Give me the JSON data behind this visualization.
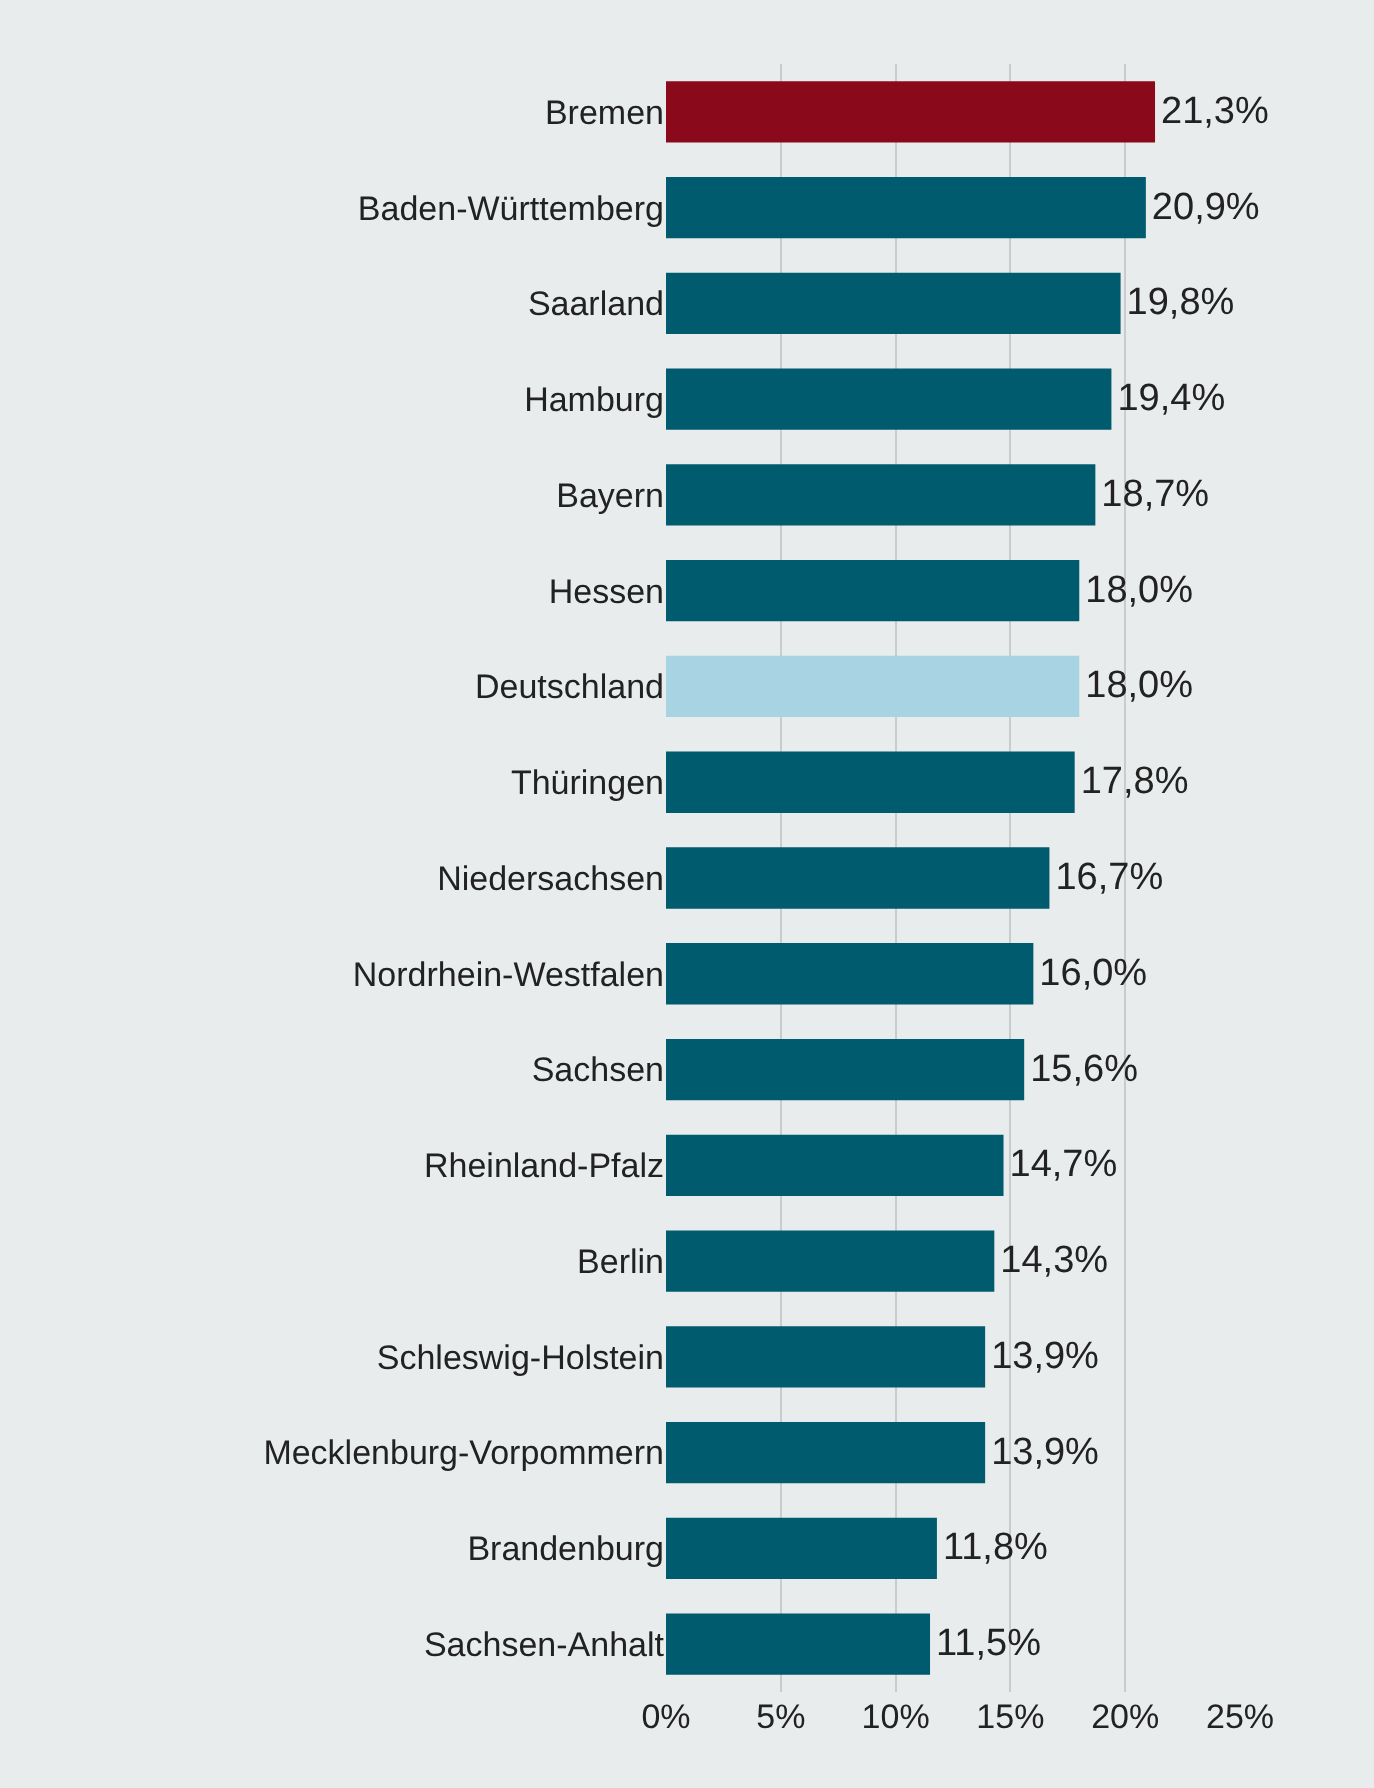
{
  "chart_data": {
    "type": "bar",
    "orientation": "horizontal",
    "categories": [
      "Bremen",
      "Baden-Württemberg",
      "Saarland",
      "Hamburg",
      "Bayern",
      "Hessen",
      "Deutschland",
      "Thüringen",
      "Niedersachsen",
      "Nordrhein-Westfalen",
      "Sachsen",
      "Rheinland-Pfalz",
      "Berlin",
      "Schleswig-Holstein",
      "Mecklenburg-Vorpommern",
      "Brandenburg",
      "Sachsen-Anhalt"
    ],
    "values": [
      21.3,
      20.9,
      19.8,
      19.4,
      18.7,
      18.0,
      18.0,
      17.8,
      16.7,
      16.0,
      15.6,
      14.7,
      14.3,
      13.9,
      13.9,
      11.8,
      11.5
    ],
    "value_labels": [
      "21,3%",
      "20,9%",
      "19,8%",
      "19,4%",
      "18,7%",
      "18,0%",
      "18,0%",
      "17,8%",
      "16,7%",
      "16,0%",
      "15,6%",
      "14,7%",
      "14,3%",
      "13,9%",
      "13,9%",
      "11,8%",
      "11,5%"
    ],
    "colors": [
      "#8a0a1c",
      "#005b6e",
      "#005b6e",
      "#005b6e",
      "#005b6e",
      "#005b6e",
      "#a8d3e3",
      "#005b6e",
      "#005b6e",
      "#005b6e",
      "#005b6e",
      "#005b6e",
      "#005b6e",
      "#005b6e",
      "#005b6e",
      "#005b6e",
      "#005b6e"
    ],
    "xlim": [
      0,
      25
    ],
    "xticks": [
      {
        "value": 0,
        "label": "0%"
      },
      {
        "value": 5,
        "label": "5%"
      },
      {
        "value": 10,
        "label": "10%"
      },
      {
        "value": 15,
        "label": "15%"
      },
      {
        "value": 20,
        "label": "20%"
      },
      {
        "value": 25,
        "label": "25%"
      }
    ],
    "grid": "x",
    "legend": false
  }
}
